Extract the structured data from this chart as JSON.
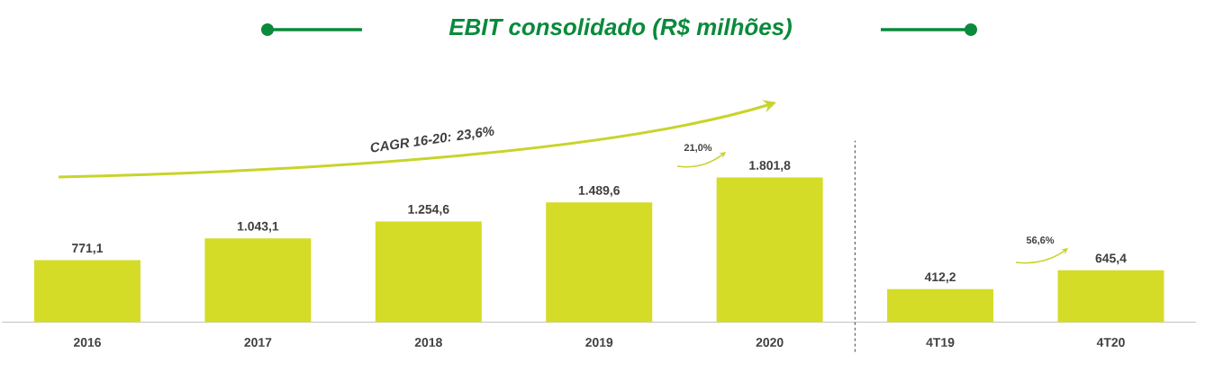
{
  "chart_data": {
    "type": "bar",
    "title": "EBIT consolidado (R$ milhões)",
    "categories": [
      "2016",
      "2017",
      "2018",
      "2019",
      "2020",
      "4T19",
      "4T20"
    ],
    "values": [
      771.1,
      1043.1,
      1254.6,
      1489.6,
      1801.8,
      412.2,
      645.4
    ],
    "value_labels": [
      "771,1",
      "1.043,1",
      "1.254,6",
      "1.489,6",
      "1.801,8",
      "412,2",
      "645,4"
    ],
    "color": "#d4dc28",
    "annotations": [
      "CAGR 16-20: 23,6%",
      "21,0%",
      "56,6%"
    ]
  }
}
